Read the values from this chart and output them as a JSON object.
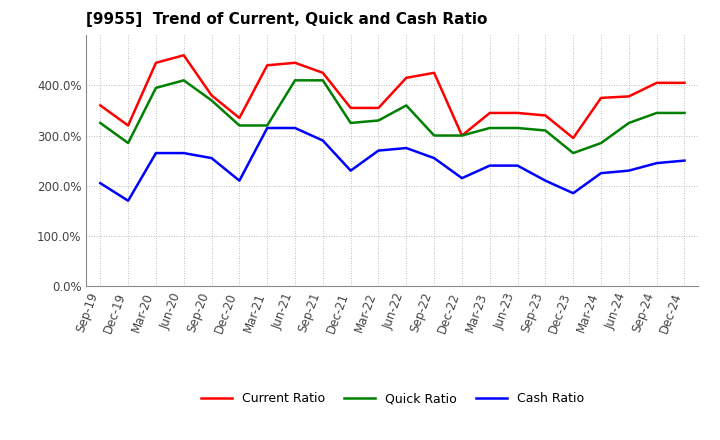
{
  "title": "[9955]  Trend of Current, Quick and Cash Ratio",
  "labels": [
    "Sep-19",
    "Dec-19",
    "Mar-20",
    "Jun-20",
    "Sep-20",
    "Dec-20",
    "Mar-21",
    "Jun-21",
    "Sep-21",
    "Dec-21",
    "Mar-22",
    "Jun-22",
    "Sep-22",
    "Dec-22",
    "Mar-23",
    "Jun-23",
    "Sep-23",
    "Dec-23",
    "Mar-24",
    "Jun-24",
    "Sep-24",
    "Dec-24"
  ],
  "current_ratio": [
    3.6,
    3.2,
    4.45,
    4.6,
    3.8,
    3.35,
    4.4,
    4.45,
    4.25,
    3.55,
    3.55,
    4.15,
    4.25,
    3.0,
    3.45,
    3.45,
    3.4,
    2.95,
    3.75,
    3.78,
    4.05,
    4.05
  ],
  "quick_ratio": [
    3.25,
    2.85,
    3.95,
    4.1,
    3.7,
    3.2,
    3.2,
    4.1,
    4.1,
    3.25,
    3.3,
    3.6,
    3.0,
    3.0,
    3.15,
    3.15,
    3.1,
    2.65,
    2.85,
    3.25,
    3.45,
    3.45
  ],
  "cash_ratio": [
    2.05,
    1.7,
    2.65,
    2.65,
    2.55,
    2.1,
    3.15,
    3.15,
    2.9,
    2.3,
    2.7,
    2.75,
    2.55,
    2.15,
    2.4,
    2.4,
    2.1,
    1.85,
    2.25,
    2.3,
    2.45,
    2.5
  ],
  "current_color": "#ff0000",
  "quick_color": "#008000",
  "cash_color": "#0000ff",
  "line_width": 1.8,
  "bg_color": "#ffffff",
  "grid_color": "#aaaaaa",
  "ylim": [
    0.0,
    5.0
  ],
  "yticks": [
    0.0,
    1.0,
    2.0,
    3.0,
    4.0
  ],
  "title_fontsize": 11,
  "tick_fontsize": 8.5,
  "legend_fontsize": 9
}
